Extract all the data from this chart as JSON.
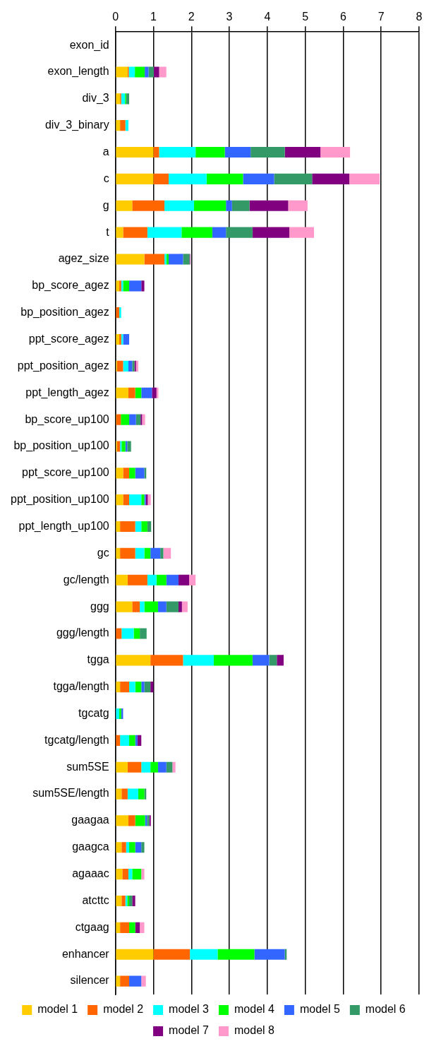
{
  "chart_data": {
    "type": "bar",
    "orientation": "horizontal",
    "stacked": true,
    "categories": [
      "exon_id",
      "exon_length",
      "div_3",
      "div_3_binary",
      "a",
      "c",
      "g",
      "t",
      "agez_size",
      "bp_score_agez",
      "bp_position_agez",
      "ppt_score_agez",
      "ppt_position_agez",
      "ppt_length_agez",
      "bp_score_up100",
      "bp_position_up100",
      "ppt_score_up100",
      "ppt_position_up100",
      "ppt_length_up100",
      "gc",
      "gc/length",
      "ggg",
      "ggg/length",
      "tgga",
      "tgga/length",
      "tgcatg",
      "tgcatg/length",
      "sum5SE",
      "sum5SE/length",
      "gaagaa",
      "gaagca",
      "agaaac",
      "atcttc",
      "ctgaag",
      "enhancer",
      "silencer"
    ],
    "series": [
      {
        "name": "model 1",
        "color": "#ffcc00",
        "values": [
          null,
          0.32,
          0.12,
          0.12,
          1.0,
          1.0,
          0.44,
          0.2,
          0.76,
          0.1,
          null,
          0.1,
          0.04,
          0.34,
          0.02,
          0.04,
          0.2,
          0.2,
          0.12,
          0.12,
          0.32,
          0.44,
          null,
          0.92,
          0.12,
          null,
          null,
          0.32,
          0.16,
          0.34,
          0.16,
          0.18,
          0.16,
          0.12,
          1.0,
          0.12
        ]
      },
      {
        "name": "model 2",
        "color": "#ff6600",
        "values": [
          null,
          0.03,
          0.03,
          0.14,
          0.15,
          0.4,
          0.85,
          0.64,
          0.53,
          0.05,
          0.1,
          0.05,
          0.16,
          0.18,
          0.12,
          0.08,
          0.16,
          0.16,
          0.4,
          0.4,
          0.52,
          0.2,
          0.16,
          0.86,
          0.24,
          null,
          0.12,
          0.36,
          0.16,
          0.18,
          0.12,
          0.16,
          0.1,
          0.24,
          0.96,
          0.24
        ]
      },
      {
        "name": "model 3",
        "color": "#00ffff",
        "values": [
          null,
          0.16,
          0.1,
          0.08,
          0.96,
          1.0,
          0.78,
          0.9,
          0.05,
          0.05,
          0.05,
          0.05,
          0.14,
          null,
          null,
          0.04,
          null,
          0.32,
          0.16,
          0.24,
          0.24,
          0.12,
          0.32,
          0.81,
          0.16,
          0.1,
          0.24,
          0.24,
          0.28,
          null,
          0.08,
          0.1,
          0.05,
          null,
          0.73,
          null
        ]
      },
      {
        "name": "model 4",
        "color": "#00ff00",
        "values": [
          null,
          0.26,
          0.03,
          null,
          0.77,
          0.96,
          0.84,
          0.81,
          0.06,
          0.16,
          null,
          null,
          null,
          0.16,
          0.22,
          0.1,
          0.16,
          0.08,
          0.16,
          0.16,
          0.26,
          0.36,
          0.16,
          1.02,
          0.16,
          0.05,
          0.16,
          0.2,
          0.16,
          0.26,
          0.16,
          0.24,
          0.05,
          0.16,
          0.97,
          null
        ]
      },
      {
        "name": "model 5",
        "color": "#3366ff",
        "values": [
          null,
          0.1,
          null,
          null,
          0.68,
          0.82,
          0.16,
          0.36,
          0.38,
          0.32,
          null,
          0.16,
          0.1,
          0.28,
          0.18,
          0.05,
          0.24,
          0.04,
          null,
          0.26,
          0.32,
          0.22,
          null,
          0.44,
          0.08,
          0.05,
          0.06,
          0.22,
          null,
          0.05,
          0.16,
          null,
          null,
          null,
          0.8,
          0.32
        ]
      },
      {
        "name": "model 6",
        "color": "#339966",
        "values": [
          null,
          0.14,
          0.08,
          null,
          0.9,
          1.0,
          0.46,
          0.7,
          0.17,
          null,
          null,
          null,
          0.06,
          null,
          0.12,
          0.1,
          0.05,
          null,
          0.1,
          0.08,
          null,
          0.32,
          0.18,
          0.2,
          0.16,
          null,
          null,
          0.16,
          0.05,
          0.06,
          0.08,
          null,
          0.08,
          null,
          0.05,
          null
        ]
      },
      {
        "name": "model 7",
        "color": "#800080",
        "values": [
          null,
          0.14,
          null,
          null,
          0.94,
          0.98,
          1.02,
          0.97,
          0.02,
          0.08,
          null,
          null,
          0.04,
          0.12,
          0.04,
          null,
          null,
          0.05,
          null,
          null,
          0.28,
          0.09,
          null,
          0.18,
          0.08,
          null,
          0.1,
          null,
          null,
          0.04,
          null,
          null,
          0.08,
          0.12,
          null,
          null
        ]
      },
      {
        "name": "model 8",
        "color": "#ff99cc",
        "values": [
          null,
          0.19,
          null,
          null,
          0.78,
          0.8,
          0.51,
          0.65,
          null,
          null,
          null,
          null,
          0.06,
          0.05,
          0.08,
          null,
          null,
          0.08,
          null,
          0.2,
          0.17,
          0.15,
          null,
          null,
          null,
          null,
          null,
          0.08,
          null,
          null,
          null,
          0.08,
          null,
          0.12,
          null,
          0.12
        ]
      }
    ],
    "xlim": [
      0,
      8
    ],
    "xticks": [
      0,
      1,
      2,
      3,
      4,
      5,
      6,
      7,
      8
    ],
    "grid": "x",
    "legend": "bottom"
  }
}
